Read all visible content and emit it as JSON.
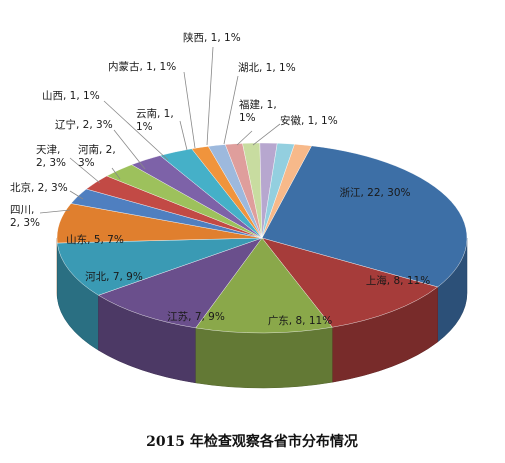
{
  "chart_data": {
    "type": "pie",
    "style": "3d",
    "title": "2015 年检查观察各省市分布情况",
    "slices": [
      {
        "name": "浙江",
        "value": 22,
        "percent": "30%",
        "label": "浙江, 22, 30%",
        "color": "#3d6fa6"
      },
      {
        "name": "上海",
        "value": 8,
        "percent": "11%",
        "label": "上海, 8, 11%",
        "color": "#a63c3a"
      },
      {
        "name": "广东",
        "value": 8,
        "percent": "11%",
        "label": "广东, 8, 11%",
        "color": "#8aa84a"
      },
      {
        "name": "江苏",
        "value": 7,
        "percent": "9%",
        "label": "江苏, 7, 9%",
        "color": "#6a4f8c"
      },
      {
        "name": "河北",
        "value": 7,
        "percent": "9%",
        "label": "河北, 7, 9%",
        "color": "#3a9ab4"
      },
      {
        "name": "山东",
        "value": 5,
        "percent": "7%",
        "label": "山东, 5, 7%",
        "color": "#e07f2e"
      },
      {
        "name": "四川",
        "value": 2,
        "percent": "3%",
        "label_lines": [
          "四川,",
          "2, 3%"
        ],
        "color": "#4f7fc0"
      },
      {
        "name": "北京",
        "value": 2,
        "percent": "3%",
        "label": "北京, 2, 3%",
        "color": "#c24a45"
      },
      {
        "name": "天津",
        "value": 2,
        "percent": "3%",
        "label_lines": [
          "天津,",
          "2, 3%"
        ],
        "color": "#9dc15c"
      },
      {
        "name": "河南",
        "value": 2,
        "percent": "3%",
        "label_lines": [
          "河南, 2,",
          "3%"
        ],
        "color": "#7d62a8"
      },
      {
        "name": "辽宁",
        "value": 2,
        "percent": "3%",
        "label": "辽宁, 2, 3%",
        "color": "#45b0c8"
      },
      {
        "name": "山西",
        "value": 1,
        "percent": "1%",
        "label": "山西, 1, 1%",
        "color": "#f0943c"
      },
      {
        "name": "云南",
        "value": 1,
        "percent": "1%",
        "label_lines": [
          "云南, 1,",
          "1%"
        ],
        "color": "#9db9dd"
      },
      {
        "name": "内蒙古",
        "value": 1,
        "percent": "1%",
        "label": "内蒙古, 1, 1%",
        "color": "#df9e9c"
      },
      {
        "name": "陕西",
        "value": 1,
        "percent": "1%",
        "label": "陕西, 1, 1%",
        "color": "#c8dca0"
      },
      {
        "name": "湖北",
        "value": 1,
        "percent": "1%",
        "label": "湖北, 1, 1%",
        "color": "#b7a7cf"
      },
      {
        "name": "福建",
        "value": 1,
        "percent": "1%",
        "label_lines": [
          "福建, 1,",
          "1%"
        ],
        "color": "#93cfdf"
      },
      {
        "name": "安徽",
        "value": 1,
        "percent": "1%",
        "label": "安徽, 1, 1%",
        "color": "#f7b98a"
      }
    ]
  }
}
